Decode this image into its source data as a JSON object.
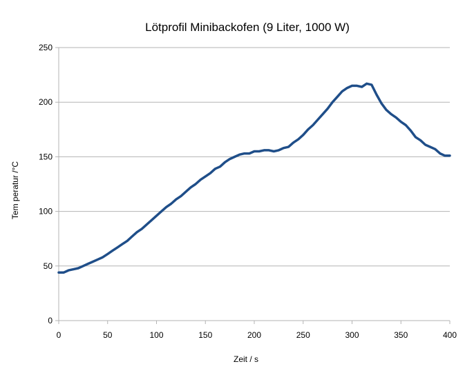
{
  "chart_data": {
    "type": "line",
    "title": "Lötprofil Minibackofen (9 Liter, 1000 W)",
    "xlabel": "Zeit / s",
    "ylabel": "Tem peratur /°C",
    "xlim": [
      0,
      400
    ],
    "ylim": [
      0,
      250
    ],
    "xticks": [
      0,
      50,
      100,
      150,
      200,
      250,
      300,
      350,
      400
    ],
    "yticks": [
      0,
      50,
      100,
      150,
      200,
      250
    ],
    "grid": true,
    "legend": "none",
    "series": [
      {
        "color": "#1f4e89",
        "x": [
          0,
          5,
          10,
          15,
          20,
          25,
          30,
          35,
          40,
          45,
          50,
          55,
          60,
          65,
          70,
          75,
          80,
          85,
          90,
          95,
          100,
          105,
          110,
          115,
          120,
          125,
          130,
          135,
          140,
          145,
          150,
          155,
          160,
          165,
          170,
          175,
          180,
          185,
          190,
          195,
          200,
          205,
          210,
          215,
          220,
          225,
          230,
          235,
          240,
          245,
          250,
          255,
          260,
          265,
          270,
          275,
          280,
          285,
          290,
          295,
          300,
          305,
          310,
          315,
          320,
          325,
          330,
          335,
          340,
          345,
          350,
          355,
          360,
          365,
          370,
          375,
          380,
          385,
          390,
          395,
          400
        ],
        "y": [
          44,
          44,
          46,
          47,
          48,
          50,
          52,
          54,
          56,
          58,
          61,
          64,
          67,
          70,
          73,
          77,
          81,
          84,
          88,
          92,
          96,
          100,
          104,
          107,
          111,
          114,
          118,
          122,
          125,
          129,
          132,
          135,
          139,
          141,
          145,
          148,
          150,
          152,
          153,
          153,
          155,
          155,
          156,
          156,
          155,
          156,
          158,
          159,
          163,
          166,
          170,
          175,
          179,
          184,
          189,
          194,
          200,
          205,
          210,
          213,
          215,
          215,
          214,
          217,
          216,
          207,
          199,
          193,
          189,
          186,
          182,
          179,
          174,
          168,
          165,
          161,
          159,
          157,
          153,
          151,
          151
        ]
      }
    ]
  }
}
